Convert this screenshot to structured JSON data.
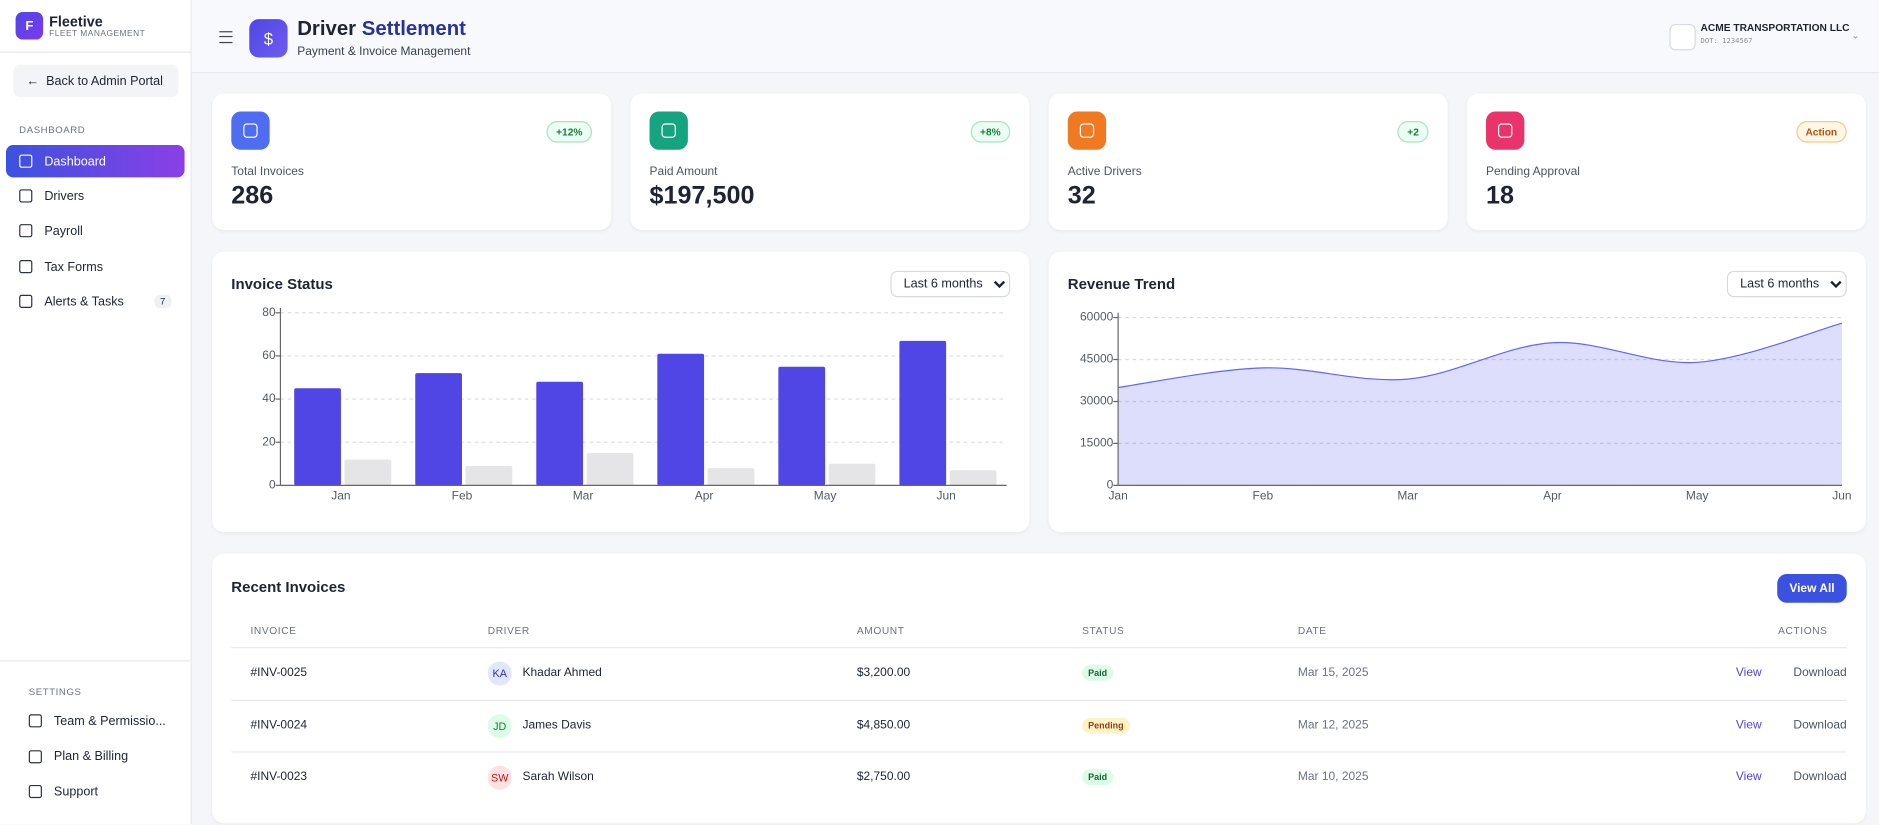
{
  "sidebar": {
    "brand": "Fleetive",
    "brand_sub": "FLEET MANAGEMENT",
    "back": "Back to Admin Portal",
    "section": "DASHBOARD",
    "nav": [
      {
        "label": "Dashboard"
      },
      {
        "label": "Drivers"
      },
      {
        "label": "Payroll"
      },
      {
        "label": "Tax Forms"
      },
      {
        "label": "Alerts & Tasks",
        "badge": "7"
      }
    ],
    "settings_title": "SETTINGS",
    "settings": [
      "Team & Permissio...",
      "Plan & Billing",
      "Support"
    ]
  },
  "header": {
    "brand_initial": "F",
    "title_a": "Driver",
    "title_b": "Settlement",
    "subtitle": "Payment & Invoice Management",
    "company": "ACME TRANSPORTATION LLC",
    "dot": "DOT: 1234567"
  },
  "stats": [
    {
      "label": "Total Invoices",
      "value": "286",
      "badge": "+12%",
      "color": "#4f6df0"
    },
    {
      "label": "Paid Amount",
      "value": "$197,500",
      "badge": "+8%",
      "color": "#16a37f"
    },
    {
      "label": "Active Drivers",
      "value": "32",
      "badge": "+2",
      "color": "#f07a22"
    },
    {
      "label": "Pending Approval",
      "value": "18",
      "badge": "Action",
      "color": "#e8336b"
    }
  ],
  "chart_data": [
    {
      "type": "bar",
      "title": "Invoice Status",
      "filter": "Last 6 months",
      "categories": [
        "Jan",
        "Feb",
        "Mar",
        "Apr",
        "May",
        "Jun"
      ],
      "series": [
        {
          "color": "#4f46e5",
          "values": [
            45,
            52,
            48,
            61,
            55,
            67
          ]
        },
        {
          "color": "#e5e5e7",
          "values": [
            12,
            9,
            15,
            8,
            10,
            7
          ]
        }
      ],
      "ylim": [
        0,
        80
      ],
      "yticks": [
        0,
        20,
        40,
        60,
        80
      ],
      "grid": true
    },
    {
      "type": "area",
      "title": "Revenue Trend",
      "filter": "Last 6 months",
      "categories": [
        "Jan",
        "Feb",
        "Mar",
        "Apr",
        "May",
        "Jun"
      ],
      "series": [
        {
          "color": "#6366f1",
          "values": [
            35000,
            42000,
            38000,
            51000,
            44000,
            58000
          ]
        }
      ],
      "ylim": [
        0,
        60000
      ],
      "yticks": [
        0,
        15000,
        30000,
        45000,
        60000
      ],
      "grid": true
    }
  ],
  "table": {
    "title": "Recent Invoices",
    "button": "View All",
    "columns": [
      "INVOICE",
      "DRIVER",
      "AMOUNT",
      "STATUS",
      "DATE",
      "ACTIONS"
    ],
    "rows": [
      {
        "invoice": "#INV-0025",
        "initials": "KA",
        "driver": "Khadar Ahmed",
        "amount": "$3,200.00",
        "status": "Paid",
        "date": "Mar 15, 2025",
        "view": "View",
        "download": "Download"
      },
      {
        "invoice": "#INV-0024",
        "initials": "JD",
        "driver": "James Davis",
        "amount": "$4,850.00",
        "status": "Pending",
        "date": "Mar 12, 2025",
        "view": "View",
        "download": "Download"
      },
      {
        "invoice": "#INV-0023",
        "initials": "SW",
        "driver": "Sarah Wilson",
        "amount": "$2,750.00",
        "status": "Paid",
        "date": "Mar 10, 2025",
        "view": "View",
        "download": "Download"
      }
    ]
  }
}
